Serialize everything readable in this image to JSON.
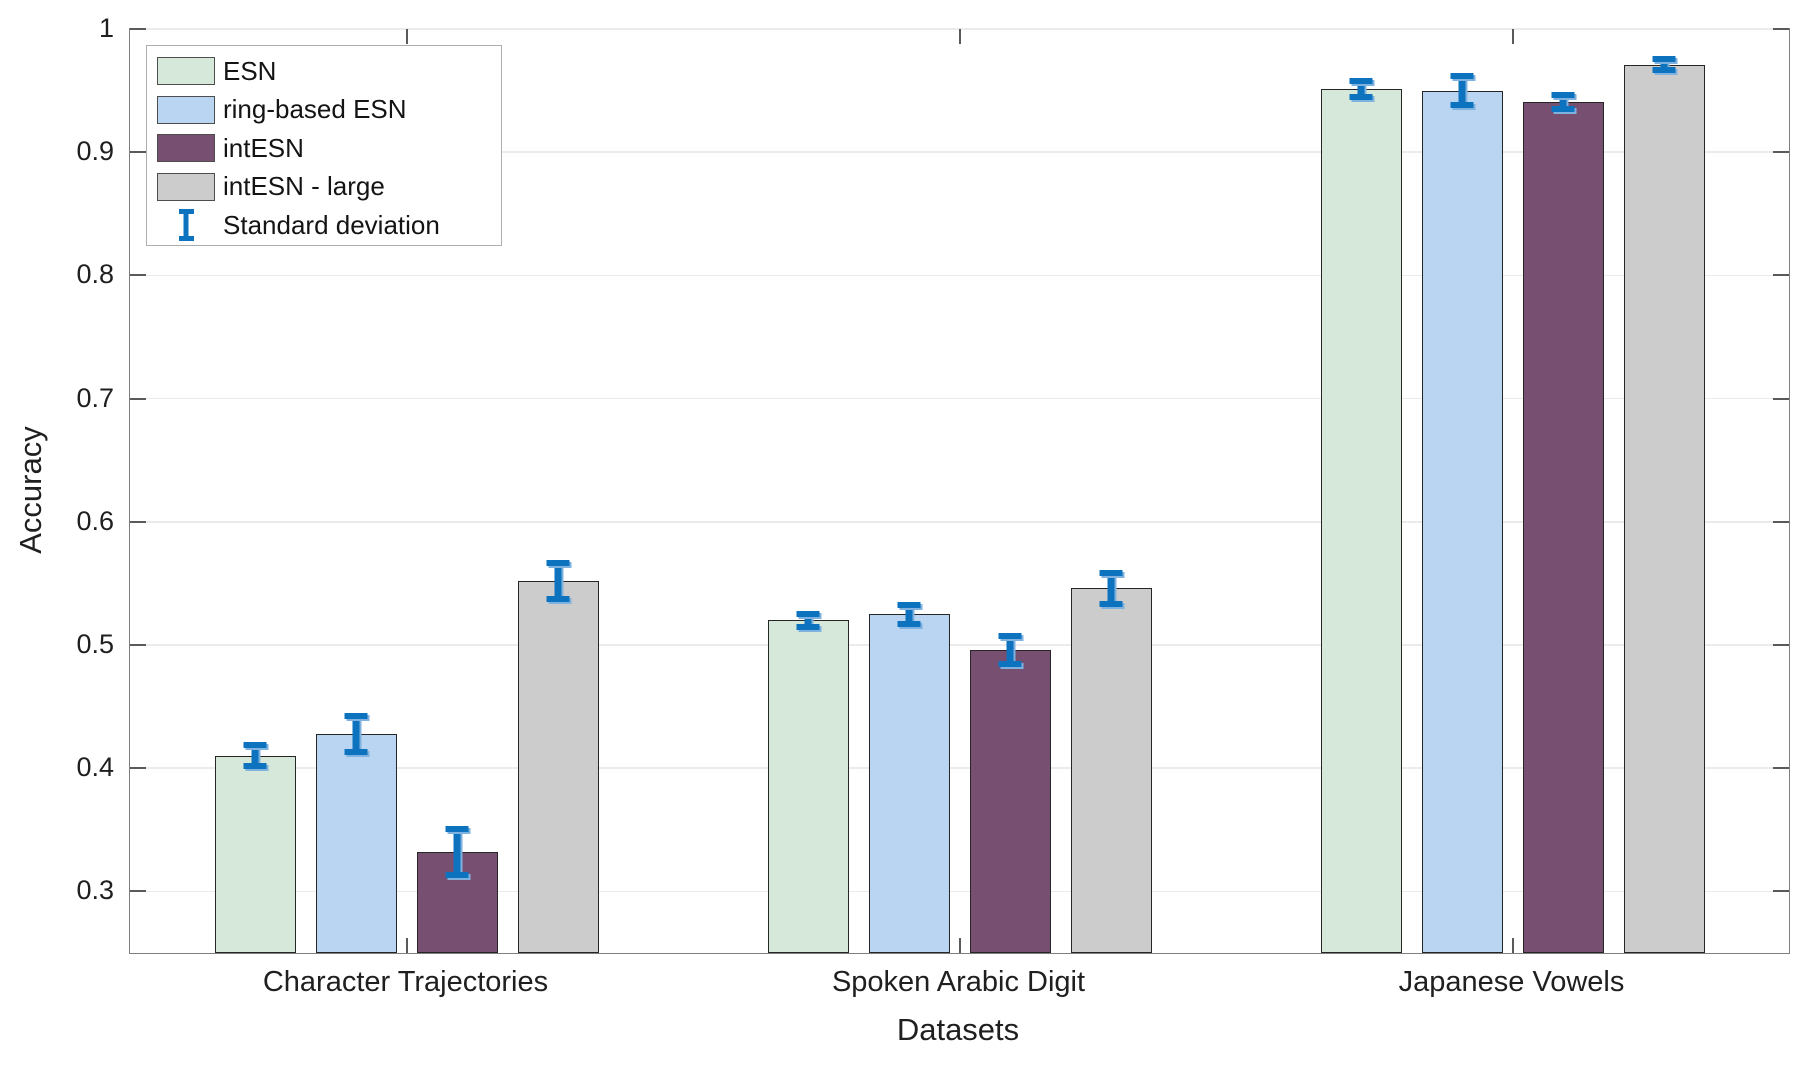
{
  "figure": {
    "xlabel": "Datasets",
    "ylabel": "Accuracy",
    "background_color": "#ffffff",
    "text_color": "#1f1f1f"
  },
  "legend": {
    "position": "top-left"
  },
  "chart_data": {
    "type": "bar",
    "title": "",
    "xlabel": "Datasets",
    "ylabel": "Accuracy",
    "categories": [
      "Character Trajectories",
      "Spoken Arabic Digit",
      "Japanese Vowels"
    ],
    "series": [
      {
        "name": "ESN",
        "color": "#d5e8d9",
        "values": [
          0.41,
          0.52,
          0.951
        ],
        "std_dev": [
          0.011,
          0.008,
          0.009
        ]
      },
      {
        "name": "ring-based ESN",
        "color": "#bad5f1",
        "values": [
          0.428,
          0.525,
          0.95
        ],
        "std_dev": [
          0.017,
          0.01,
          0.014
        ]
      },
      {
        "name": "intESN",
        "color": "#774f71",
        "values": [
          0.332,
          0.496,
          0.941
        ],
        "std_dev": [
          0.021,
          0.014,
          0.008
        ]
      },
      {
        "name": "intESN - large",
        "color": "#cccccc",
        "values": [
          0.552,
          0.546,
          0.971
        ],
        "std_dev": [
          0.017,
          0.015,
          0.007
        ]
      }
    ],
    "error_bars": {
      "label": "Standard deviation",
      "color": "#0e73bf",
      "shadow_color": "#7fb2de"
    },
    "ylim": [
      0.25,
      1.0
    ],
    "yticks": [
      0.3,
      0.4,
      0.5,
      0.6,
      0.7,
      0.8,
      0.9,
      1.0
    ],
    "ytick_labels": [
      "0.3",
      "0.4",
      "0.5",
      "0.6",
      "0.7",
      "0.8",
      "0.9",
      "1"
    ],
    "grid": "horizontal-only",
    "grid_color": "#ebebeb",
    "axis_color": "#7f7f7f",
    "bar_edge_color": "#262626",
    "legend_position": "top-left"
  }
}
